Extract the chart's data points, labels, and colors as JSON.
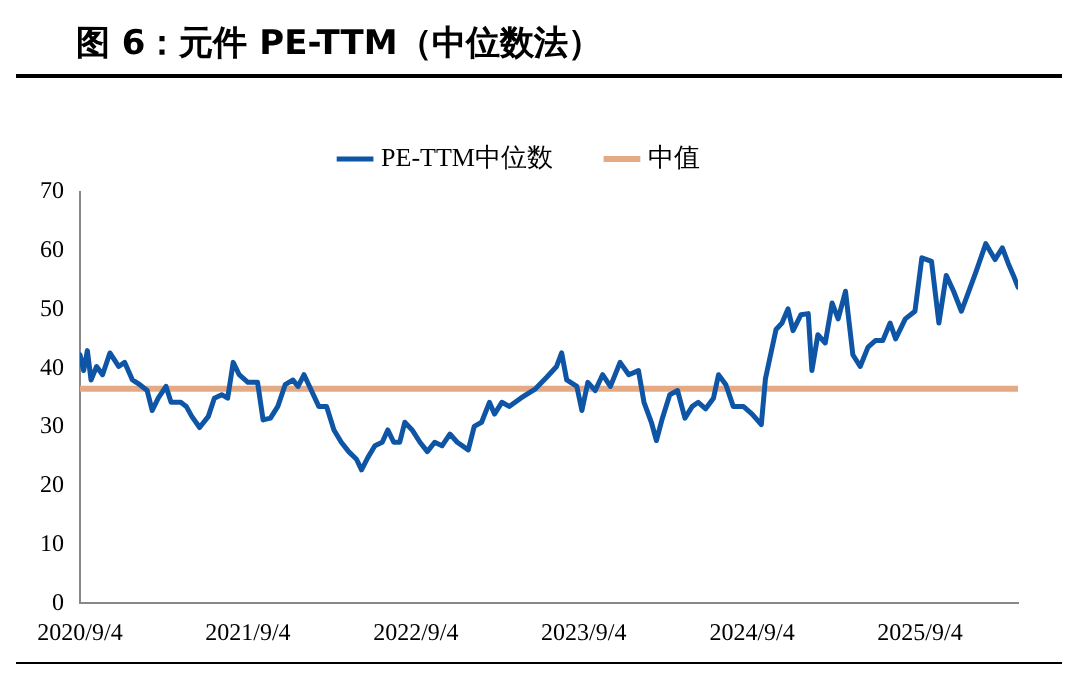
{
  "chart_data": {
    "type": "line",
    "title": "图 6：元件 PE-TTM（中位数法）",
    "xlim": [
      "2020-09-04",
      "2026-04-05"
    ],
    "xticks": [
      {
        "value": "2020-09-04",
        "label": "2020/9/4"
      },
      {
        "value": "2021-09-04",
        "label": "2021/9/4"
      },
      {
        "value": "2022-09-04",
        "label": "2022/9/4"
      },
      {
        "value": "2023-09-04",
        "label": "2023/9/4"
      },
      {
        "value": "2024-09-04",
        "label": "2024/9/4"
      },
      {
        "value": "2025-09-04",
        "label": "2025/9/4"
      }
    ],
    "ylim": [
      0,
      70
    ],
    "yticks": [
      0,
      10,
      20,
      30,
      40,
      50,
      60,
      70
    ],
    "grid": false,
    "legend": "top",
    "marker": "none",
    "line_style": "solid",
    "series": [
      {
        "name": "PE-TTM中位数",
        "color": "#0f55a5",
        "x": [
          "2020-09-04",
          "2020-09-12",
          "2020-09-20",
          "2020-09-28",
          "2020-10-10",
          "2020-10-23",
          "2020-11-08",
          "2020-11-27",
          "2020-12-10",
          "2020-12-27",
          "2021-01-12",
          "2021-01-28",
          "2021-02-08",
          "2021-02-21",
          "2021-03-10",
          "2021-03-21",
          "2021-04-11",
          "2021-04-23",
          "2021-05-05",
          "2021-05-22",
          "2021-06-10",
          "2021-06-23",
          "2021-07-09",
          "2021-07-22",
          "2021-08-03",
          "2021-08-16",
          "2021-09-04",
          "2021-09-25",
          "2021-10-07",
          "2021-10-23",
          "2021-11-08",
          "2021-11-24",
          "2021-12-11",
          "2021-12-22",
          "2022-01-04",
          "2022-01-20",
          "2022-02-05",
          "2022-02-22",
          "2022-03-10",
          "2022-03-26",
          "2022-04-11",
          "2022-04-28",
          "2022-05-09",
          "2022-05-22",
          "2022-06-07",
          "2022-06-23",
          "2022-07-05",
          "2022-07-18",
          "2022-07-31",
          "2022-08-11",
          "2022-08-27",
          "2022-09-13",
          "2022-09-29",
          "2022-10-15",
          "2022-10-31",
          "2022-11-17",
          "2022-12-03",
          "2022-12-27",
          "2023-01-09",
          "2023-01-25",
          "2023-02-11",
          "2023-02-22",
          "2023-03-10",
          "2023-03-26",
          "2023-04-20",
          "2023-05-22",
          "2023-06-16",
          "2023-07-07",
          "2023-07-18",
          "2023-07-29",
          "2023-08-20",
          "2023-08-31",
          "2023-09-13",
          "2023-09-29",
          "2023-10-15",
          "2023-11-01",
          "2023-11-22",
          "2023-12-11",
          "2024-01-01",
          "2024-01-13",
          "2024-01-29",
          "2024-02-09",
          "2024-02-22",
          "2024-03-09",
          "2024-03-26",
          "2024-04-11",
          "2024-04-27",
          "2024-05-10",
          "2024-05-26",
          "2024-06-12",
          "2024-06-23",
          "2024-07-09",
          "2024-07-25",
          "2024-08-16",
          "2024-09-04",
          "2024-09-24",
          "2024-10-03",
          "2024-10-15",
          "2024-10-26",
          "2024-11-08",
          "2024-11-21",
          "2024-12-02",
          "2024-12-19",
          "2025-01-04",
          "2025-01-12",
          "2025-01-25",
          "2025-02-10",
          "2025-02-25",
          "2025-03-10",
          "2025-03-26",
          "2025-04-11",
          "2025-04-27",
          "2025-05-14",
          "2025-05-30",
          "2025-06-15",
          "2025-07-01",
          "2025-07-13",
          "2025-08-03",
          "2025-08-24",
          "2025-09-08",
          "2025-09-29",
          "2025-10-15",
          "2025-10-31",
          "2025-11-16",
          "2025-12-03",
          "2025-12-19",
          "2026-01-04",
          "2026-01-25",
          "2026-02-14",
          "2026-03-02",
          "2026-03-15",
          "2026-03-26",
          "2026-04-05"
        ],
        "values": [
          42.3,
          39.6,
          43,
          38,
          40.3,
          38.9,
          42.6,
          40.3,
          41,
          38,
          37.2,
          36.2,
          32.8,
          34.9,
          36.9,
          34.2,
          34.2,
          33.5,
          31.8,
          29.9,
          31.8,
          34.9,
          35.5,
          34.9,
          41,
          38.9,
          37.6,
          37.6,
          31.2,
          31.5,
          33.5,
          37.2,
          38,
          36.9,
          38.9,
          36.2,
          33.5,
          33.5,
          29.5,
          27.4,
          25.8,
          24.5,
          22.7,
          24.7,
          26.8,
          27.4,
          29.5,
          27.4,
          27.4,
          30.8,
          29.5,
          27.4,
          25.8,
          27.4,
          26.8,
          28.8,
          27.4,
          26.1,
          30.1,
          30.8,
          34.2,
          32.2,
          34.2,
          33.5,
          34.9,
          36.5,
          38.5,
          40.3,
          42.6,
          38,
          36.9,
          32.8,
          37.6,
          36.2,
          38.9,
          36.9,
          41,
          38.9,
          39.6,
          34.2,
          30.8,
          27.7,
          31.5,
          35.5,
          36.2,
          31.5,
          33.5,
          34.2,
          33.1,
          34.9,
          38.9,
          37.2,
          33.5,
          33.5,
          32.2,
          30.4,
          38.2,
          42.6,
          46.6,
          47.7,
          50.1,
          46.4,
          49.1,
          49.3,
          39.6,
          45.7,
          44.3,
          51.1,
          48.4,
          53.1,
          42.3,
          40.3,
          43.6,
          44.7,
          44.7,
          47.7,
          45,
          48.4,
          49.7,
          58.8,
          58.2,
          47.7,
          55.8,
          53.1,
          49.7,
          53.1,
          56.5,
          61.2,
          58.5,
          60.5,
          57.8,
          55.8,
          53.8
        ]
      }
    ],
    "ref_lines": [
      {
        "axis": "y",
        "value": 36.5,
        "label": "中值",
        "color": "#e3aa84"
      }
    ]
  }
}
